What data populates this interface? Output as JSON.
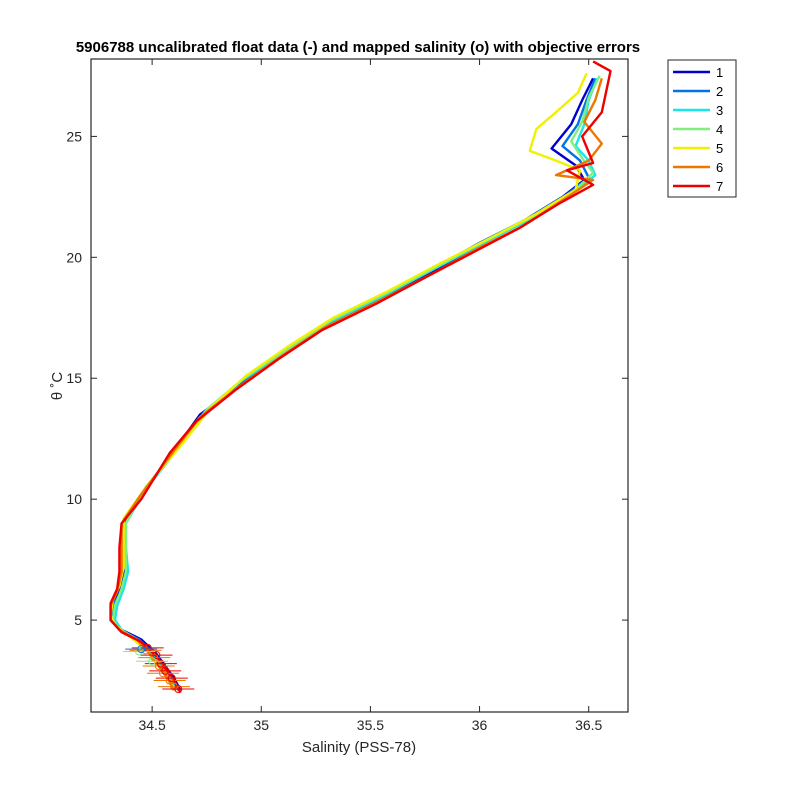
{
  "chart_data": {
    "type": "line",
    "title": "5906788 uncalibrated float data (-) and mapped salinity (o) with objective errors",
    "xlabel": "Salinity (PSS-78)",
    "ylabel": "θ ˚C",
    "xlim": [
      34.22,
      36.68
    ],
    "ylim": [
      1.2,
      28.2
    ],
    "xticks": [
      34.5,
      35,
      35.5,
      36,
      36.5
    ],
    "yticks": [
      5,
      10,
      15,
      20,
      25
    ],
    "xtick_labels": [
      "34.5",
      "35",
      "35.5",
      "36",
      "36.5"
    ],
    "ytick_labels": [
      "5",
      "10",
      "15",
      "20",
      "25"
    ],
    "grid": false,
    "legend_position": "outside-top-right",
    "series": [
      {
        "name": "1",
        "color": "#0000cc",
        "points": [
          [
            34.63,
            2.1
          ],
          [
            34.6,
            2.6
          ],
          [
            34.56,
            3.1
          ],
          [
            34.52,
            3.6
          ],
          [
            34.45,
            4.2
          ],
          [
            34.36,
            4.6
          ],
          [
            34.32,
            5.0
          ],
          [
            34.32,
            5.6
          ],
          [
            34.35,
            6.2
          ],
          [
            34.37,
            7.0
          ],
          [
            34.36,
            8.0
          ],
          [
            34.37,
            9.0
          ],
          [
            34.45,
            10.2
          ],
          [
            34.6,
            12.0
          ],
          [
            34.72,
            13.5
          ],
          [
            34.9,
            14.7
          ],
          [
            35.1,
            16.0
          ],
          [
            35.3,
            17.2
          ],
          [
            35.55,
            18.3
          ],
          [
            35.8,
            19.5
          ],
          [
            36.0,
            20.5
          ],
          [
            36.2,
            21.5
          ],
          [
            36.38,
            22.5
          ],
          [
            36.48,
            23.2
          ],
          [
            36.44,
            23.8
          ],
          [
            36.33,
            24.5
          ],
          [
            36.42,
            25.5
          ],
          [
            36.47,
            26.5
          ],
          [
            36.52,
            27.4
          ]
        ]
      },
      {
        "name": "2",
        "color": "#0073e6",
        "points": [
          [
            34.62,
            2.1
          ],
          [
            34.59,
            2.6
          ],
          [
            34.55,
            3.1
          ],
          [
            34.51,
            3.6
          ],
          [
            34.44,
            4.2
          ],
          [
            34.35,
            4.6
          ],
          [
            34.31,
            5.0
          ],
          [
            34.32,
            5.6
          ],
          [
            34.36,
            6.2
          ],
          [
            34.38,
            7.0
          ],
          [
            34.37,
            8.0
          ],
          [
            34.37,
            9.0
          ],
          [
            34.46,
            10.3
          ],
          [
            34.61,
            12.0
          ],
          [
            34.73,
            13.5
          ],
          [
            34.9,
            14.8
          ],
          [
            35.1,
            16.0
          ],
          [
            35.3,
            17.2
          ],
          [
            35.55,
            18.4
          ],
          [
            35.8,
            19.6
          ],
          [
            36.0,
            20.6
          ],
          [
            36.22,
            21.6
          ],
          [
            36.4,
            22.6
          ],
          [
            36.5,
            23.3
          ],
          [
            36.46,
            24.0
          ],
          [
            36.38,
            24.6
          ],
          [
            36.45,
            25.5
          ],
          [
            36.49,
            26.5
          ],
          [
            36.53,
            27.4
          ]
        ]
      },
      {
        "name": "3",
        "color": "#19e6e6",
        "points": [
          [
            34.61,
            2.1
          ],
          [
            34.58,
            2.6
          ],
          [
            34.54,
            3.1
          ],
          [
            34.5,
            3.6
          ],
          [
            34.43,
            4.2
          ],
          [
            34.36,
            4.6
          ],
          [
            34.33,
            5.0
          ],
          [
            34.34,
            5.6
          ],
          [
            34.37,
            6.3
          ],
          [
            34.39,
            7.0
          ],
          [
            34.38,
            8.0
          ],
          [
            34.38,
            9.0
          ],
          [
            34.47,
            10.4
          ],
          [
            34.62,
            12.1
          ],
          [
            34.74,
            13.6
          ],
          [
            34.91,
            14.9
          ],
          [
            35.11,
            16.1
          ],
          [
            35.31,
            17.3
          ],
          [
            35.56,
            18.4
          ],
          [
            35.81,
            19.6
          ],
          [
            36.02,
            20.6
          ],
          [
            36.24,
            21.6
          ],
          [
            36.42,
            22.6
          ],
          [
            36.53,
            23.4
          ],
          [
            36.5,
            24.0
          ],
          [
            36.44,
            24.6
          ],
          [
            36.48,
            25.5
          ],
          [
            36.5,
            26.5
          ],
          [
            36.54,
            27.4
          ]
        ]
      },
      {
        "name": "4",
        "color": "#80ee80",
        "points": [
          [
            34.6,
            2.1
          ],
          [
            34.57,
            2.6
          ],
          [
            34.53,
            3.1
          ],
          [
            34.49,
            3.6
          ],
          [
            34.42,
            4.2
          ],
          [
            34.35,
            4.6
          ],
          [
            34.32,
            5.0
          ],
          [
            34.33,
            5.6
          ],
          [
            34.36,
            6.3
          ],
          [
            34.38,
            7.0
          ],
          [
            34.38,
            8.0
          ],
          [
            34.38,
            9.0
          ],
          [
            34.47,
            10.5
          ],
          [
            34.63,
            12.2
          ],
          [
            34.75,
            13.7
          ],
          [
            34.92,
            15.0
          ],
          [
            35.12,
            16.2
          ],
          [
            35.32,
            17.4
          ],
          [
            35.57,
            18.5
          ],
          [
            35.82,
            19.7
          ],
          [
            36.03,
            20.7
          ],
          [
            36.25,
            21.7
          ],
          [
            36.43,
            22.7
          ],
          [
            36.52,
            23.5
          ],
          [
            36.47,
            24.1
          ],
          [
            36.42,
            24.8
          ],
          [
            36.47,
            25.6
          ],
          [
            36.5,
            26.6
          ],
          [
            36.55,
            27.5
          ]
        ]
      },
      {
        "name": "5",
        "color": "#f0f000",
        "points": [
          [
            34.6,
            2.2
          ],
          [
            34.56,
            2.7
          ],
          [
            34.52,
            3.2
          ],
          [
            34.48,
            3.7
          ],
          [
            34.4,
            4.3
          ],
          [
            34.33,
            4.8
          ],
          [
            34.31,
            5.2
          ],
          [
            34.32,
            5.8
          ],
          [
            34.35,
            6.4
          ],
          [
            34.37,
            7.2
          ],
          [
            34.37,
            8.2
          ],
          [
            34.37,
            9.2
          ],
          [
            34.48,
            10.6
          ],
          [
            34.64,
            12.3
          ],
          [
            34.77,
            13.8
          ],
          [
            34.93,
            15.1
          ],
          [
            35.12,
            16.3
          ],
          [
            35.33,
            17.5
          ],
          [
            35.58,
            18.6
          ],
          [
            35.83,
            19.8
          ],
          [
            36.05,
            20.8
          ],
          [
            36.26,
            21.8
          ],
          [
            36.44,
            22.8
          ],
          [
            36.46,
            23.6
          ],
          [
            36.35,
            24.0
          ],
          [
            36.23,
            24.4
          ],
          [
            36.26,
            25.3
          ],
          [
            36.35,
            26.0
          ],
          [
            36.45,
            26.8
          ],
          [
            36.49,
            27.6
          ]
        ]
      },
      {
        "name": "6",
        "color": "#ee7700",
        "points": [
          [
            34.6,
            2.1
          ],
          [
            34.57,
            2.6
          ],
          [
            34.53,
            3.1
          ],
          [
            34.49,
            3.6
          ],
          [
            34.43,
            4.2
          ],
          [
            34.35,
            4.6
          ],
          [
            34.31,
            5.0
          ],
          [
            34.31,
            5.6
          ],
          [
            34.34,
            6.2
          ],
          [
            34.36,
            7.0
          ],
          [
            34.36,
            8.0
          ],
          [
            34.36,
            9.0
          ],
          [
            34.45,
            10.2
          ],
          [
            34.6,
            12.0
          ],
          [
            34.72,
            13.4
          ],
          [
            34.89,
            14.6
          ],
          [
            35.09,
            15.9
          ],
          [
            35.29,
            17.1
          ],
          [
            35.54,
            18.2
          ],
          [
            35.8,
            19.4
          ],
          [
            36.0,
            20.4
          ],
          [
            36.2,
            21.3
          ],
          [
            36.37,
            22.3
          ],
          [
            36.52,
            23.2
          ],
          [
            36.35,
            23.4
          ],
          [
            36.5,
            24.0
          ],
          [
            36.56,
            24.7
          ],
          [
            36.48,
            25.6
          ],
          [
            36.53,
            26.5
          ],
          [
            36.56,
            27.4
          ]
        ]
      },
      {
        "name": "7",
        "color": "#ee0000",
        "points": [
          [
            34.63,
            2.0
          ],
          [
            34.6,
            2.5
          ],
          [
            34.56,
            3.0
          ],
          [
            34.52,
            3.5
          ],
          [
            34.45,
            4.1
          ],
          [
            34.36,
            4.5
          ],
          [
            34.31,
            5.0
          ],
          [
            34.31,
            5.7
          ],
          [
            34.34,
            6.3
          ],
          [
            34.35,
            7.0
          ],
          [
            34.35,
            8.0
          ],
          [
            34.36,
            9.0
          ],
          [
            34.45,
            10.0
          ],
          [
            34.58,
            11.9
          ],
          [
            34.7,
            13.2
          ],
          [
            34.88,
            14.5
          ],
          [
            35.08,
            15.8
          ],
          [
            35.28,
            17.0
          ],
          [
            35.53,
            18.1
          ],
          [
            35.78,
            19.3
          ],
          [
            35.99,
            20.3
          ],
          [
            36.18,
            21.2
          ],
          [
            36.36,
            22.2
          ],
          [
            36.52,
            23.0
          ],
          [
            36.4,
            23.6
          ],
          [
            36.52,
            23.9
          ],
          [
            36.47,
            25.0
          ],
          [
            36.56,
            26.0
          ],
          [
            36.6,
            27.7
          ],
          [
            36.52,
            28.1
          ]
        ]
      }
    ],
    "mapped_markers": [
      {
        "series": "6",
        "color": "#ee7700",
        "points": [
          [
            34.47,
            3.75
          ],
          [
            34.51,
            3.45
          ],
          [
            34.53,
            3.1
          ],
          [
            34.55,
            2.8
          ],
          [
            34.58,
            2.5
          ],
          [
            34.6,
            2.25
          ]
        ]
      },
      {
        "series": "7",
        "color": "#ee0000",
        "points": [
          [
            34.48,
            3.85
          ],
          [
            34.52,
            3.55
          ],
          [
            34.54,
            3.2
          ],
          [
            34.56,
            2.9
          ],
          [
            34.59,
            2.6
          ],
          [
            34.62,
            2.15
          ]
        ]
      },
      {
        "series": "4",
        "color": "#80ee80",
        "points": [
          [
            34.44,
            3.7
          ],
          [
            34.5,
            3.3
          ]
        ]
      },
      {
        "series": "2",
        "color": "#0073e6",
        "points": [
          [
            34.45,
            3.8
          ]
        ]
      }
    ]
  }
}
